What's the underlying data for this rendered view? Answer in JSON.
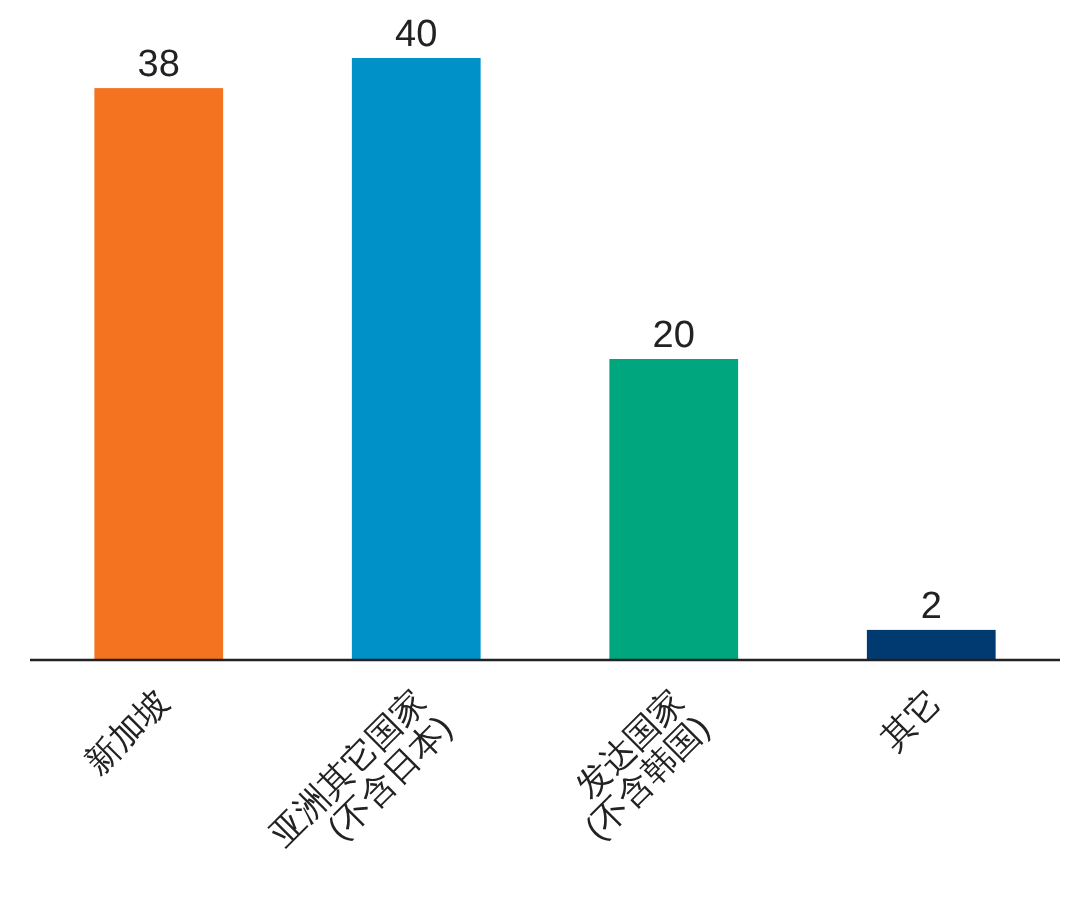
{
  "chart_data": {
    "type": "bar",
    "categories": [
      "新加坡",
      "亚洲其它国家\n(不含日本)",
      "发达国家\n(不含韩国)",
      "其它"
    ],
    "values": [
      38,
      40,
      20,
      2
    ],
    "colors": [
      "#f47321",
      "#0091c8",
      "#00a77e",
      "#003a70"
    ],
    "data_labels": true
  }
}
